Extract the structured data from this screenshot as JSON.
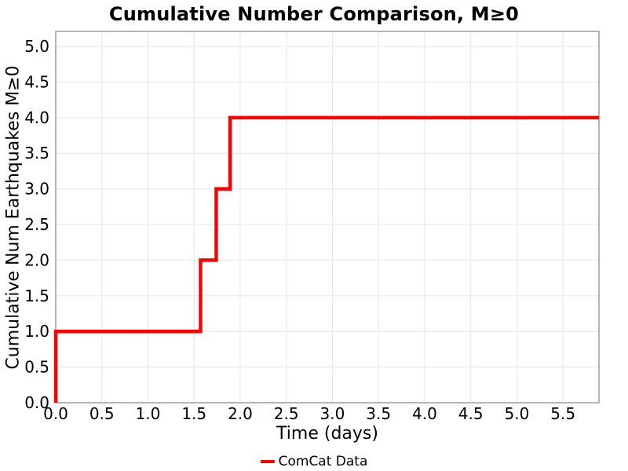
{
  "chart_data": {
    "type": "line",
    "subtype": "step",
    "title": "Cumulative Number Comparison, M≥0",
    "xlabel": "Time (days)",
    "ylabel": "Cumulative Num Earthquakes M≥0",
    "xlim": [
      0,
      5.89
    ],
    "ylim": [
      0,
      5.21
    ],
    "grid": true,
    "xticks": [
      0.0,
      0.5,
      1.0,
      1.5,
      2.0,
      2.5,
      3.0,
      3.5,
      4.0,
      4.5,
      5.0,
      5.5
    ],
    "xtick_labels": [
      "0.0",
      "0.5",
      "1.0",
      "1.5",
      "2.0",
      "2.5",
      "3.0",
      "3.5",
      "4.0",
      "4.5",
      "5.0",
      "5.5"
    ],
    "yticks": [
      0.0,
      0.5,
      1.0,
      1.5,
      2.0,
      2.5,
      3.0,
      3.5,
      4.0,
      4.5,
      5.0
    ],
    "ytick_labels": [
      "0.0",
      "0.5",
      "1.0",
      "1.5",
      "2.0",
      "2.5",
      "3.0",
      "3.5",
      "4.0",
      "4.5",
      "5.0"
    ],
    "legend": {
      "position": "bottom-center",
      "entries": [
        {
          "label": "ComCat Data",
          "color": "#ff0000"
        }
      ]
    },
    "series": [
      {
        "name": "ComCat Data",
        "color": "#ff0000",
        "line_width": 4.5,
        "event_times_days": [
          0.0,
          1.57,
          1.74,
          1.89
        ],
        "cumulative_counts": [
          1,
          2,
          3,
          4
        ],
        "points": [
          [
            0.0,
            0.0
          ],
          [
            0.0,
            1.0
          ],
          [
            1.57,
            1.0
          ],
          [
            1.57,
            2.0
          ],
          [
            1.74,
            2.0
          ],
          [
            1.74,
            3.0
          ],
          [
            1.89,
            3.0
          ],
          [
            1.89,
            4.0
          ],
          [
            5.89,
            4.0
          ]
        ]
      }
    ],
    "colors": {
      "line": "#ff0000",
      "grid": "#e6e6e6",
      "spine": "#9c9c9c",
      "text": "#000000"
    }
  }
}
